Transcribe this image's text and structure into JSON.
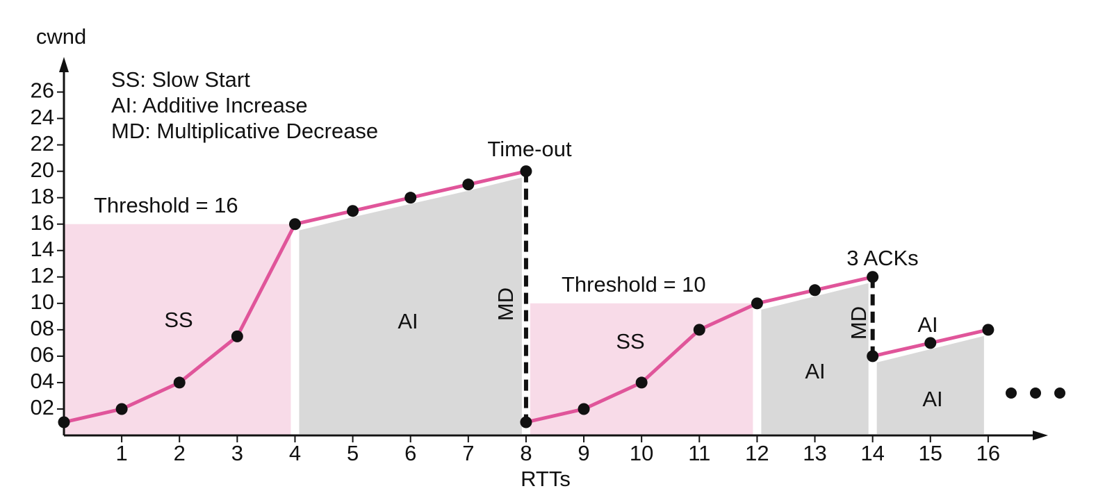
{
  "chart_data": {
    "type": "line",
    "x_label": "RTTs",
    "y_label": "cwnd",
    "notes": [
      "SS: Slow Start",
      "AI: Additive Increase",
      "MD: Multiplicative Decrease"
    ],
    "x": [
      0,
      1,
      2,
      3,
      4,
      5,
      6,
      7,
      8,
      8,
      9,
      10,
      11,
      12,
      13,
      14,
      14,
      15,
      16
    ],
    "values": [
      1,
      2,
      4,
      7.5,
      16,
      17,
      18,
      19,
      20,
      1,
      2,
      4,
      8,
      10,
      11,
      12,
      6,
      7,
      8
    ],
    "color": "#e0559a",
    "drop_color": "#111111",
    "regions": [
      {
        "label": "SS",
        "x": [
          0,
          4
        ],
        "top": 16,
        "color": "#f8dbe8"
      },
      {
        "label": "AI",
        "x": [
          4,
          8
        ],
        "color": "#d9d9d9"
      },
      {
        "label": "SS",
        "x": [
          8,
          12
        ],
        "top": 10,
        "color": "#f8dbe8"
      },
      {
        "label": "AI",
        "x": [
          12,
          14
        ],
        "color": "#d9d9d9"
      },
      {
        "label": "AI",
        "x": [
          14,
          16
        ],
        "color": "#d9d9d9"
      }
    ],
    "annotations": [
      "Threshold = 16",
      "Time-out",
      "Threshold = 10",
      "3 ACKs",
      "MD",
      "MD",
      "AI"
    ],
    "xlim": [
      0,
      17
    ],
    "ylim": [
      0,
      28.5
    ],
    "xticks": [
      1,
      2,
      3,
      4,
      5,
      6,
      7,
      8,
      9,
      10,
      11,
      12,
      13,
      14,
      15,
      16
    ],
    "yticks": [
      {
        "value": 2,
        "label": "02"
      },
      {
        "value": 4,
        "label": "04"
      },
      {
        "value": 6,
        "label": "06"
      },
      {
        "value": 8,
        "label": "08"
      },
      10,
      12,
      14,
      16,
      18,
      20,
      22,
      24,
      26
    ]
  }
}
